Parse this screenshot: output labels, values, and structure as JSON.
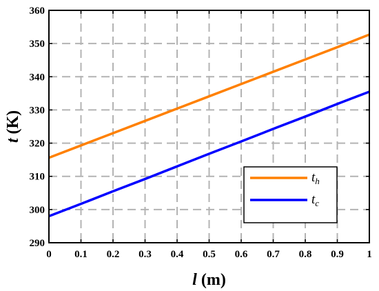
{
  "chart_data": {
    "type": "line",
    "xlabel": {
      "var": "l",
      "unit": " (m)"
    },
    "ylabel": {
      "var": "t",
      "unit": " (K)"
    },
    "xlim": [
      0,
      1
    ],
    "ylim": [
      290,
      360
    ],
    "xticks": [
      0,
      0.1,
      0.2,
      0.3,
      0.4,
      0.5,
      0.6,
      0.7,
      0.8,
      0.9,
      1
    ],
    "xtick_labels": [
      "0",
      "0.1",
      "0.2",
      "0.3",
      "0.4",
      "0.5",
      "0.6",
      "0.7",
      "0.8",
      "0.9",
      "1"
    ],
    "yticks": [
      290,
      300,
      310,
      320,
      330,
      340,
      350,
      360
    ],
    "ytick_labels": [
      "290",
      "300",
      "310",
      "320",
      "330",
      "340",
      "350",
      "360"
    ],
    "grid": true,
    "grid_style": "dashed",
    "legend_position": "lower-right",
    "series": [
      {
        "name": "t_h",
        "legend_var": "t",
        "legend_sub": "h",
        "color": "#FF8000",
        "x": [
          0,
          0.1,
          0.2,
          0.3,
          0.4,
          0.5,
          0.6,
          0.7,
          0.8,
          0.9,
          1
        ],
        "y": [
          315.6,
          319.3,
          323.0,
          326.7,
          330.4,
          334.1,
          337.8,
          341.5,
          345.2,
          348.9,
          352.7
        ]
      },
      {
        "name": "t_c",
        "legend_var": "t",
        "legend_sub": "c",
        "color": "#0000FF",
        "x": [
          0,
          0.1,
          0.2,
          0.3,
          0.4,
          0.5,
          0.6,
          0.7,
          0.8,
          0.9,
          1
        ],
        "y": [
          298.0,
          301.7,
          305.5,
          309.2,
          313.0,
          316.8,
          320.5,
          324.3,
          328.0,
          331.8,
          335.5
        ]
      }
    ]
  }
}
